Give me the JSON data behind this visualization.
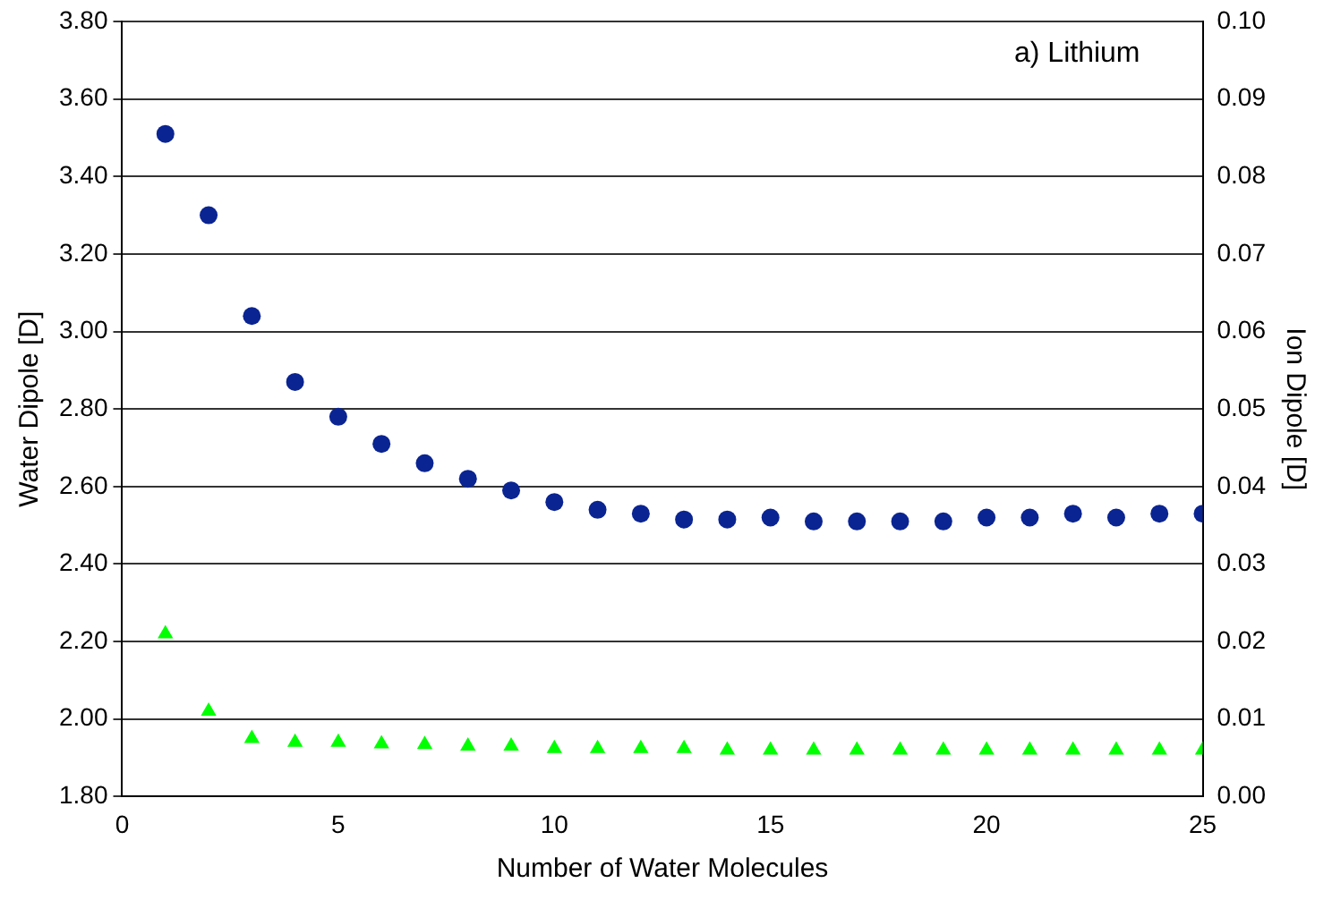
{
  "chart_data": {
    "type": "scatter",
    "xlabel": "Number of Water Molecules",
    "ylabel": "Water Dipole [D]",
    "y2label": "Ion Dipole [D]",
    "annotations": [
      "a) Lithium"
    ],
    "x": [
      1,
      2,
      3,
      4,
      5,
      6,
      7,
      8,
      9,
      10,
      11,
      12,
      13,
      14,
      15,
      16,
      17,
      18,
      19,
      20,
      21,
      22,
      23,
      24,
      25
    ],
    "series": [
      {
        "color": "#0a2492",
        "marker": "circle",
        "values": [
          3.51,
          3.3,
          3.04,
          2.87,
          2.78,
          2.71,
          2.66,
          2.62,
          2.59,
          2.56,
          2.54,
          2.53,
          2.515,
          2.515,
          2.52,
          2.51,
          2.51,
          2.51,
          2.51,
          2.52,
          2.52,
          2.53,
          2.52,
          2.53,
          2.53
        ]
      },
      {
        "color": "#00ff00",
        "marker": "triangle",
        "axis": "y2",
        "values": [
          0.021,
          0.011,
          0.0075,
          0.007,
          0.007,
          0.0068,
          0.0067,
          0.0065,
          0.0065,
          0.0062,
          0.0062,
          0.0062,
          0.0062,
          0.006,
          0.006,
          0.006,
          0.006,
          0.006,
          0.006,
          0.006,
          0.006,
          0.006,
          0.006,
          0.006,
          0.006
        ]
      }
    ],
    "xlim": [
      0,
      25
    ],
    "xticks": [
      0,
      5,
      10,
      15,
      20,
      25
    ],
    "ylim": [
      1.8,
      3.8
    ],
    "yticks": [
      {
        "value": 1.8,
        "label": "1.80"
      },
      {
        "value": 2.0,
        "label": "2.00"
      },
      {
        "value": 2.2,
        "label": "2.20"
      },
      {
        "value": 2.4,
        "label": "2.40"
      },
      {
        "value": 2.6,
        "label": "2.60"
      },
      {
        "value": 2.8,
        "label": "2.80"
      },
      {
        "value": 3.0,
        "label": "3.00"
      },
      {
        "value": 3.2,
        "label": "3.20"
      },
      {
        "value": 3.4,
        "label": "3.40"
      },
      {
        "value": 3.6,
        "label": "3.60"
      },
      {
        "value": 3.8,
        "label": "3.80"
      }
    ],
    "y2lim": [
      0,
      0.1
    ],
    "y2ticks": [
      {
        "value": 0,
        "label": "0.00"
      },
      {
        "value": 0.01,
        "label": "0.01"
      },
      {
        "value": 0.02,
        "label": "0.02"
      },
      {
        "value": 0.03,
        "label": "0.03"
      },
      {
        "value": 0.04,
        "label": "0.04"
      },
      {
        "value": 0.05,
        "label": "0.05"
      },
      {
        "value": 0.06,
        "label": "0.06"
      },
      {
        "value": 0.07,
        "label": "0.07"
      },
      {
        "value": 0.08,
        "label": "0.08"
      },
      {
        "value": 0.09,
        "label": "0.09"
      },
      {
        "value": 0.1,
        "label": "0.10"
      }
    ],
    "grid": "y",
    "legend": false
  }
}
